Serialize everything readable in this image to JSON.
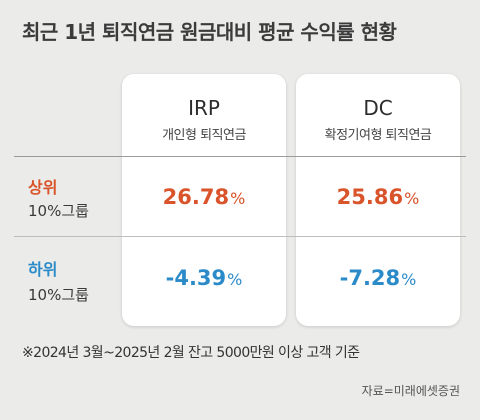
{
  "title": "최근 1년 퇴직연금 원금대비 평균 수익률 현황",
  "columns": [
    {
      "name": "IRP",
      "subtitle": "개인형 퇴직연금"
    },
    {
      "name": "DC",
      "subtitle": "확정기여형 퇴직연금"
    }
  ],
  "rows": [
    {
      "label": "상위",
      "sublabel": "10%그룹",
      "values": [
        "26.78",
        "25.86"
      ],
      "unit": "%",
      "color": "#d9542a"
    },
    {
      "label": "하위",
      "sublabel": "10%그룹",
      "values": [
        "-4.39",
        "-7.28"
      ],
      "unit": "%",
      "color": "#2b8bc9"
    }
  ],
  "footnote": "※2024년 3월~2025년 2월 잔고 5000만원 이상 고객 기준",
  "source": "자료=미래에셋증권"
}
